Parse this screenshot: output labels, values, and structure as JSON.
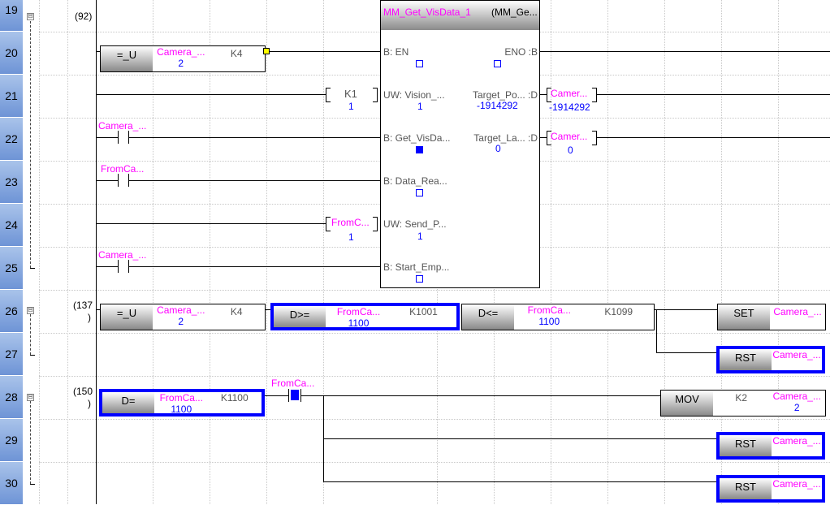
{
  "row_numbers": [
    "19",
    "20",
    "21",
    "22",
    "23",
    "24",
    "25",
    "26",
    "27",
    "28",
    "29",
    "30"
  ],
  "step_labels": {
    "s92": "(92)",
    "s137": "(137",
    "s150": "(150",
    "paren": ")"
  },
  "fold_symbol": "⊟",
  "rung20": {
    "op": "=_U",
    "dev": "Camera_...",
    "dev_val": "2",
    "const": "K4"
  },
  "fb": {
    "instance": "MM_Get_VisData_1",
    "type": "(MM_Ge...",
    "in": [
      {
        "label": "B: EN"
      },
      {
        "label": "UW: Vision_...",
        "value": "1"
      },
      {
        "label": "B: Get_VisDa..."
      },
      {
        "label": "B: Data_Rea..."
      },
      {
        "label": "UW: Send_P...",
        "value": "1"
      },
      {
        "label": "B: Start_Emp..."
      }
    ],
    "out": [
      {
        "label": "ENO :B"
      },
      {
        "label": "Target_Po... :D",
        "value": "-1914292"
      },
      {
        "label": "Target_La... :D",
        "value": "0"
      }
    ]
  },
  "fb_inputs": {
    "k1": "K1",
    "k1_val": "1",
    "fromc": "FromC...",
    "fromc_val": "1"
  },
  "fb_outputs": [
    {
      "dev": "Camer...",
      "value": "-1914292"
    },
    {
      "dev": "Camer...",
      "value": "0"
    }
  ],
  "contacts": {
    "r22": "Camera_...",
    "r23": "FromCa...",
    "r25": "Camera_...",
    "r28": "FromCa..."
  },
  "rung26": {
    "cmp1": {
      "op": "=_U",
      "dev": "Camera_...",
      "val": "2",
      "const": "K4"
    },
    "cmp2": {
      "op": "D>=",
      "dev": "FromCa...",
      "val": "1100",
      "const": "K1001"
    },
    "cmp3": {
      "op": "D<=",
      "dev": "FromCa...",
      "val": "1100",
      "const": "K1099"
    },
    "set": {
      "op": "SET",
      "dev": "Camera_..."
    },
    "rst": {
      "op": "RST",
      "dev": "Camera_..."
    }
  },
  "rung28": {
    "cmp": {
      "op": "D=",
      "dev": "FromCa...",
      "val": "1100",
      "const": "K1100"
    },
    "mov": {
      "op": "MOV",
      "src": "K2",
      "dev": "Camera_...",
      "val": "2"
    },
    "rst1": {
      "op": "RST",
      "dev": "Camera_..."
    },
    "rst2": {
      "op": "RST",
      "dev": "Camera_..."
    }
  },
  "colors": {
    "active": "#0000ff",
    "device": "#ff00ff",
    "row_header": "#6e94d6"
  }
}
